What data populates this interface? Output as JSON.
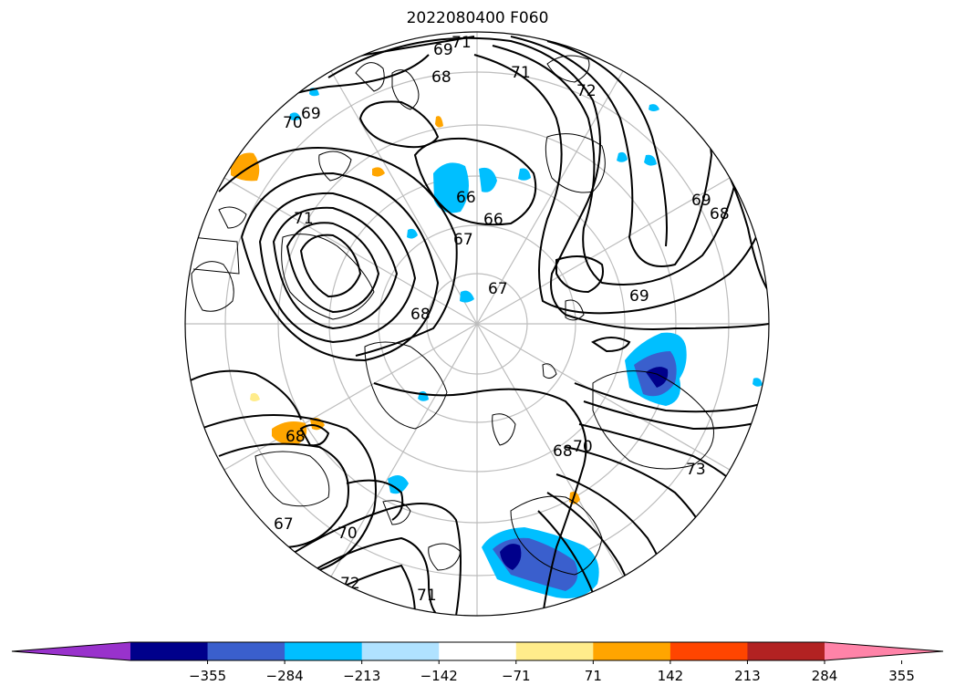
{
  "title": "2022080400 F060",
  "map": {
    "projection": "north-polar-stereographic",
    "contour_labels": [
      "66",
      "66",
      "67",
      "67",
      "67",
      "68",
      "68",
      "68",
      "68",
      "68",
      "69",
      "69",
      "69",
      "69",
      "70",
      "70",
      "70",
      "71",
      "71",
      "71",
      "71",
      "72",
      "72",
      "73"
    ]
  },
  "colorbar": {
    "extend": "both",
    "colors": [
      "#9932cc",
      "#00008b",
      "#3a5fcd",
      "#00bfff",
      "#b0e2ff",
      "#ffffff",
      "#ffec8b",
      "#ffa500",
      "#ff4500",
      "#b22222",
      "#ff83a8"
    ],
    "ticks": [
      "−355",
      "−284",
      "−213",
      "−142",
      "−71",
      "71",
      "142",
      "213",
      "284",
      "355"
    ]
  }
}
